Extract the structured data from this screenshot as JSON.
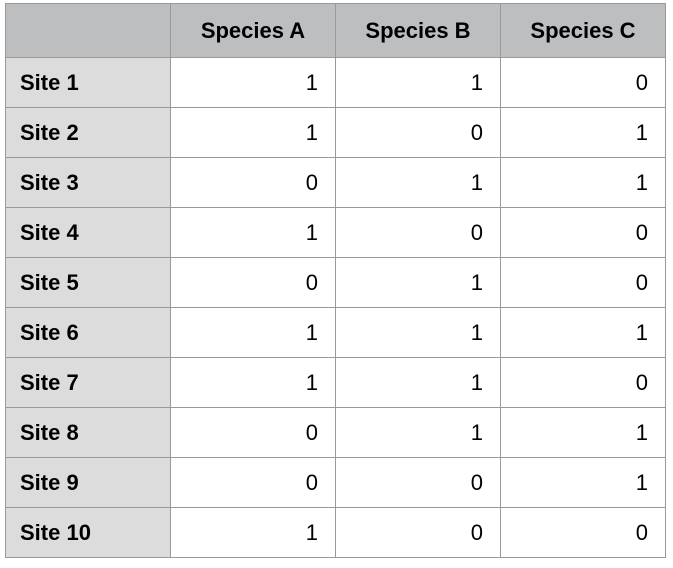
{
  "colors": {
    "header_bg": "#bcbec0",
    "row_label_bg": "#dcdcdc",
    "cell_bg": "#ffffff",
    "grid_border": "#999999",
    "header_divider": "#4d4d4d",
    "text": "#000000"
  },
  "table": {
    "corner_label": "",
    "columns": [
      "Species A",
      "Species B",
      "Species C"
    ],
    "rows": [
      {
        "label": "Site 1",
        "values": [
          "1",
          "1",
          "0"
        ]
      },
      {
        "label": "Site 2",
        "values": [
          "1",
          "0",
          "1"
        ]
      },
      {
        "label": "Site 3",
        "values": [
          "0",
          "1",
          "1"
        ]
      },
      {
        "label": "Site 4",
        "values": [
          "1",
          "0",
          "0"
        ]
      },
      {
        "label": "Site 5",
        "values": [
          "0",
          "1",
          "0"
        ]
      },
      {
        "label": "Site 6",
        "values": [
          "1",
          "1",
          "1"
        ]
      },
      {
        "label": "Site 7",
        "values": [
          "1",
          "1",
          "0"
        ]
      },
      {
        "label": "Site 8",
        "values": [
          "0",
          "1",
          "1"
        ]
      },
      {
        "label": "Site 9",
        "values": [
          "0",
          "0",
          "1"
        ]
      },
      {
        "label": "Site 10",
        "values": [
          "1",
          "0",
          "0"
        ]
      }
    ]
  },
  "chart_data": {
    "type": "table",
    "title": "",
    "columns": [
      "",
      "Species A",
      "Species B",
      "Species C"
    ],
    "rows": [
      [
        "Site 1",
        1,
        1,
        0
      ],
      [
        "Site 2",
        1,
        0,
        1
      ],
      [
        "Site 3",
        0,
        1,
        1
      ],
      [
        "Site 4",
        1,
        0,
        0
      ],
      [
        "Site 5",
        0,
        1,
        0
      ],
      [
        "Site 6",
        1,
        1,
        1
      ],
      [
        "Site 7",
        1,
        1,
        0
      ],
      [
        "Site 8",
        0,
        1,
        1
      ],
      [
        "Site 9",
        0,
        0,
        1
      ],
      [
        "Site 10",
        1,
        0,
        0
      ]
    ]
  }
}
